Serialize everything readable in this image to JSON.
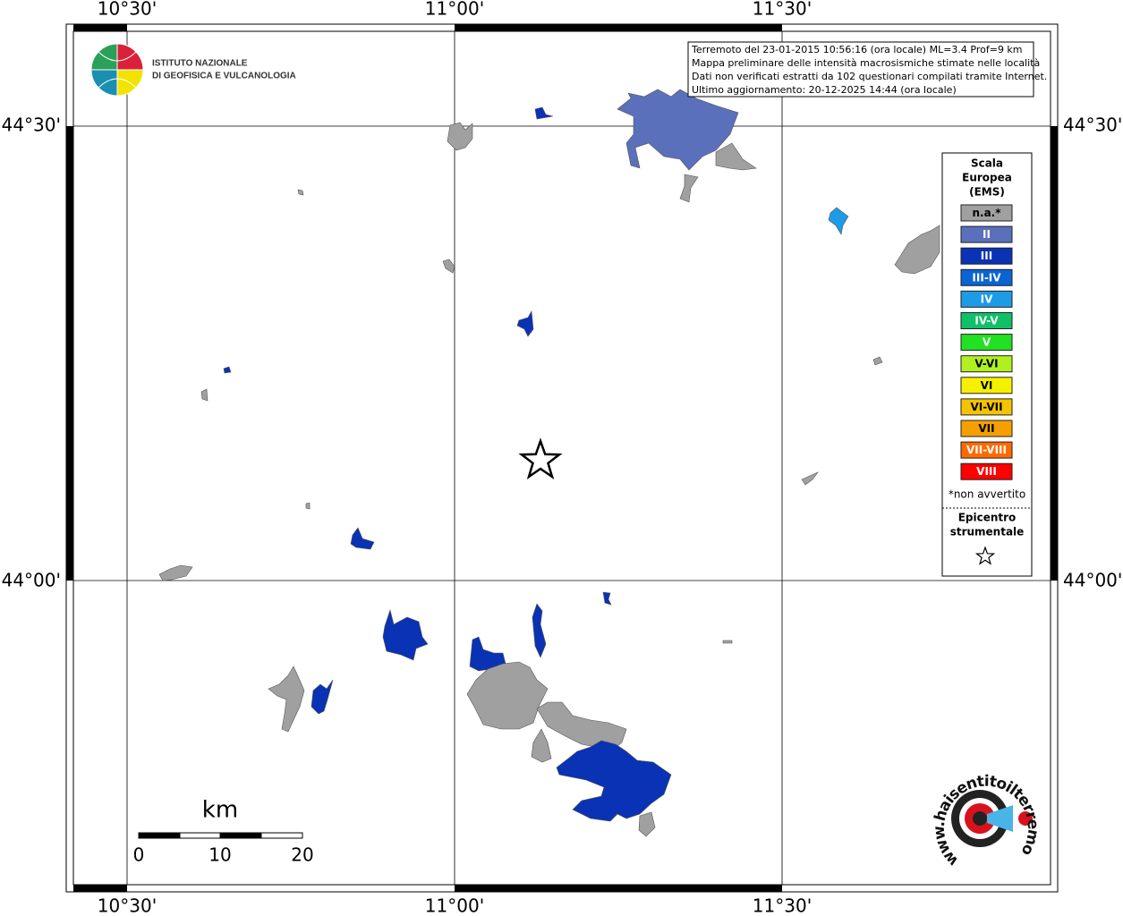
{
  "axes": {
    "top_labels": [
      "10°30'",
      "11°00'",
      "11°30'"
    ],
    "bottom_labels": [
      "10°30'",
      "11°00'",
      "11°30'"
    ],
    "left_labels": [
      "44°30'",
      "44°00'"
    ],
    "right_labels": [
      "44°30'",
      "44°00'"
    ]
  },
  "logo": {
    "lines": [
      "ISTITUTO NAZIONALE",
      "DI GEOFISICA E VULCANOLOGIA"
    ]
  },
  "info": {
    "lines": [
      "Terremoto del 23-01-2015 10:56:16 (ora locale) ML=3.4 Prof=9 km",
      "Mappa preliminare delle intensità macrosismiche stimate nelle località",
      "Dati non verificati estratti da 102 questionari compilati tramite Internet.",
      "Ultimo aggiornamento: 20-12-2025 14:44 (ora locale)"
    ]
  },
  "legend": {
    "title_lines": [
      "Scala",
      "Europea",
      "(EMS)"
    ],
    "classes": [
      {
        "label": "n.a.*",
        "color": "#a0a0a0"
      },
      {
        "label": "II",
        "color": "#5b70bb"
      },
      {
        "label": "III",
        "color": "#0a32b4"
      },
      {
        "label": "III-IV",
        "color": "#0a64d2"
      },
      {
        "label": "IV",
        "color": "#1e9be6"
      },
      {
        "label": "IV-V",
        "color": "#10c068"
      },
      {
        "label": "V",
        "color": "#22e022"
      },
      {
        "label": "V-VI",
        "color": "#b0f020"
      },
      {
        "label": "VI",
        "color": "#f5f000"
      },
      {
        "label": "VI-VII",
        "color": "#f5c400"
      },
      {
        "label": "VII",
        "color": "#f5a000"
      },
      {
        "label": "VII-VIII",
        "color": "#ff6a00"
      },
      {
        "label": "VIII",
        "color": "#ff0000"
      }
    ],
    "note": "*non avvertito",
    "epicenter_lines": [
      "Epicentro",
      "strumentale"
    ]
  },
  "scale_bar": {
    "unit": "km",
    "ticks": [
      0,
      10,
      20
    ]
  },
  "site_logo": {
    "text": "www.haisentitoilterremoto.it"
  }
}
